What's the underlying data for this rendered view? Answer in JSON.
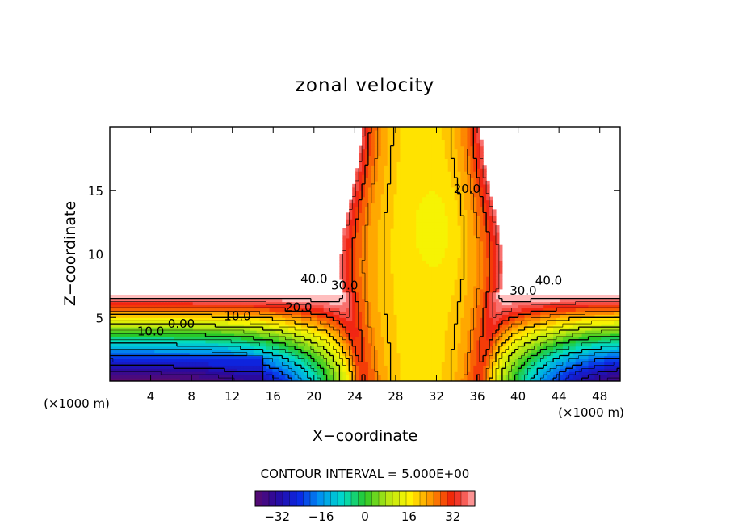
{
  "chart_data": {
    "type": "contour",
    "title": "zonal velocity",
    "xlabel": "X−coordinate",
    "ylabel": "Z−coordinate",
    "x_unit_left": "(×1000 m)",
    "x_unit_right": "(×1000 m)",
    "xlim": [
      0,
      50
    ],
    "ylim": [
      0,
      20
    ],
    "x_ticks": [
      4,
      8,
      12,
      16,
      20,
      24,
      28,
      32,
      36,
      40,
      44,
      48
    ],
    "y_ticks": [
      5,
      10,
      15
    ],
    "contour_interval_text": "CONTOUR INTERVAL = 5.000E+00",
    "contour_labels": [
      {
        "text": "40.0",
        "x": 20.0,
        "z": 7.7
      },
      {
        "text": "30.0",
        "x": 23.0,
        "z": 7.2
      },
      {
        "text": "20.0",
        "x": 18.5,
        "z": 5.5
      },
      {
        "text": "10.0",
        "x": 12.5,
        "z": 4.8
      },
      {
        "text": "0.00",
        "x": 7.0,
        "z": 4.2
      },
      {
        "text": "10.0",
        "x": 4.0,
        "z": 3.6
      },
      {
        "text": "20.0",
        "x": 35.0,
        "z": 14.8
      },
      {
        "text": "30.0",
        "x": 40.5,
        "z": 6.8
      },
      {
        "text": "40.0",
        "x": 43.0,
        "z": 7.6
      }
    ],
    "colorbar": {
      "range": [
        -40,
        40
      ],
      "ticks": [
        -32,
        -16,
        0,
        16,
        32
      ],
      "tick_labels": [
        "−32",
        "−16",
        "0",
        "16",
        "32"
      ]
    }
  }
}
